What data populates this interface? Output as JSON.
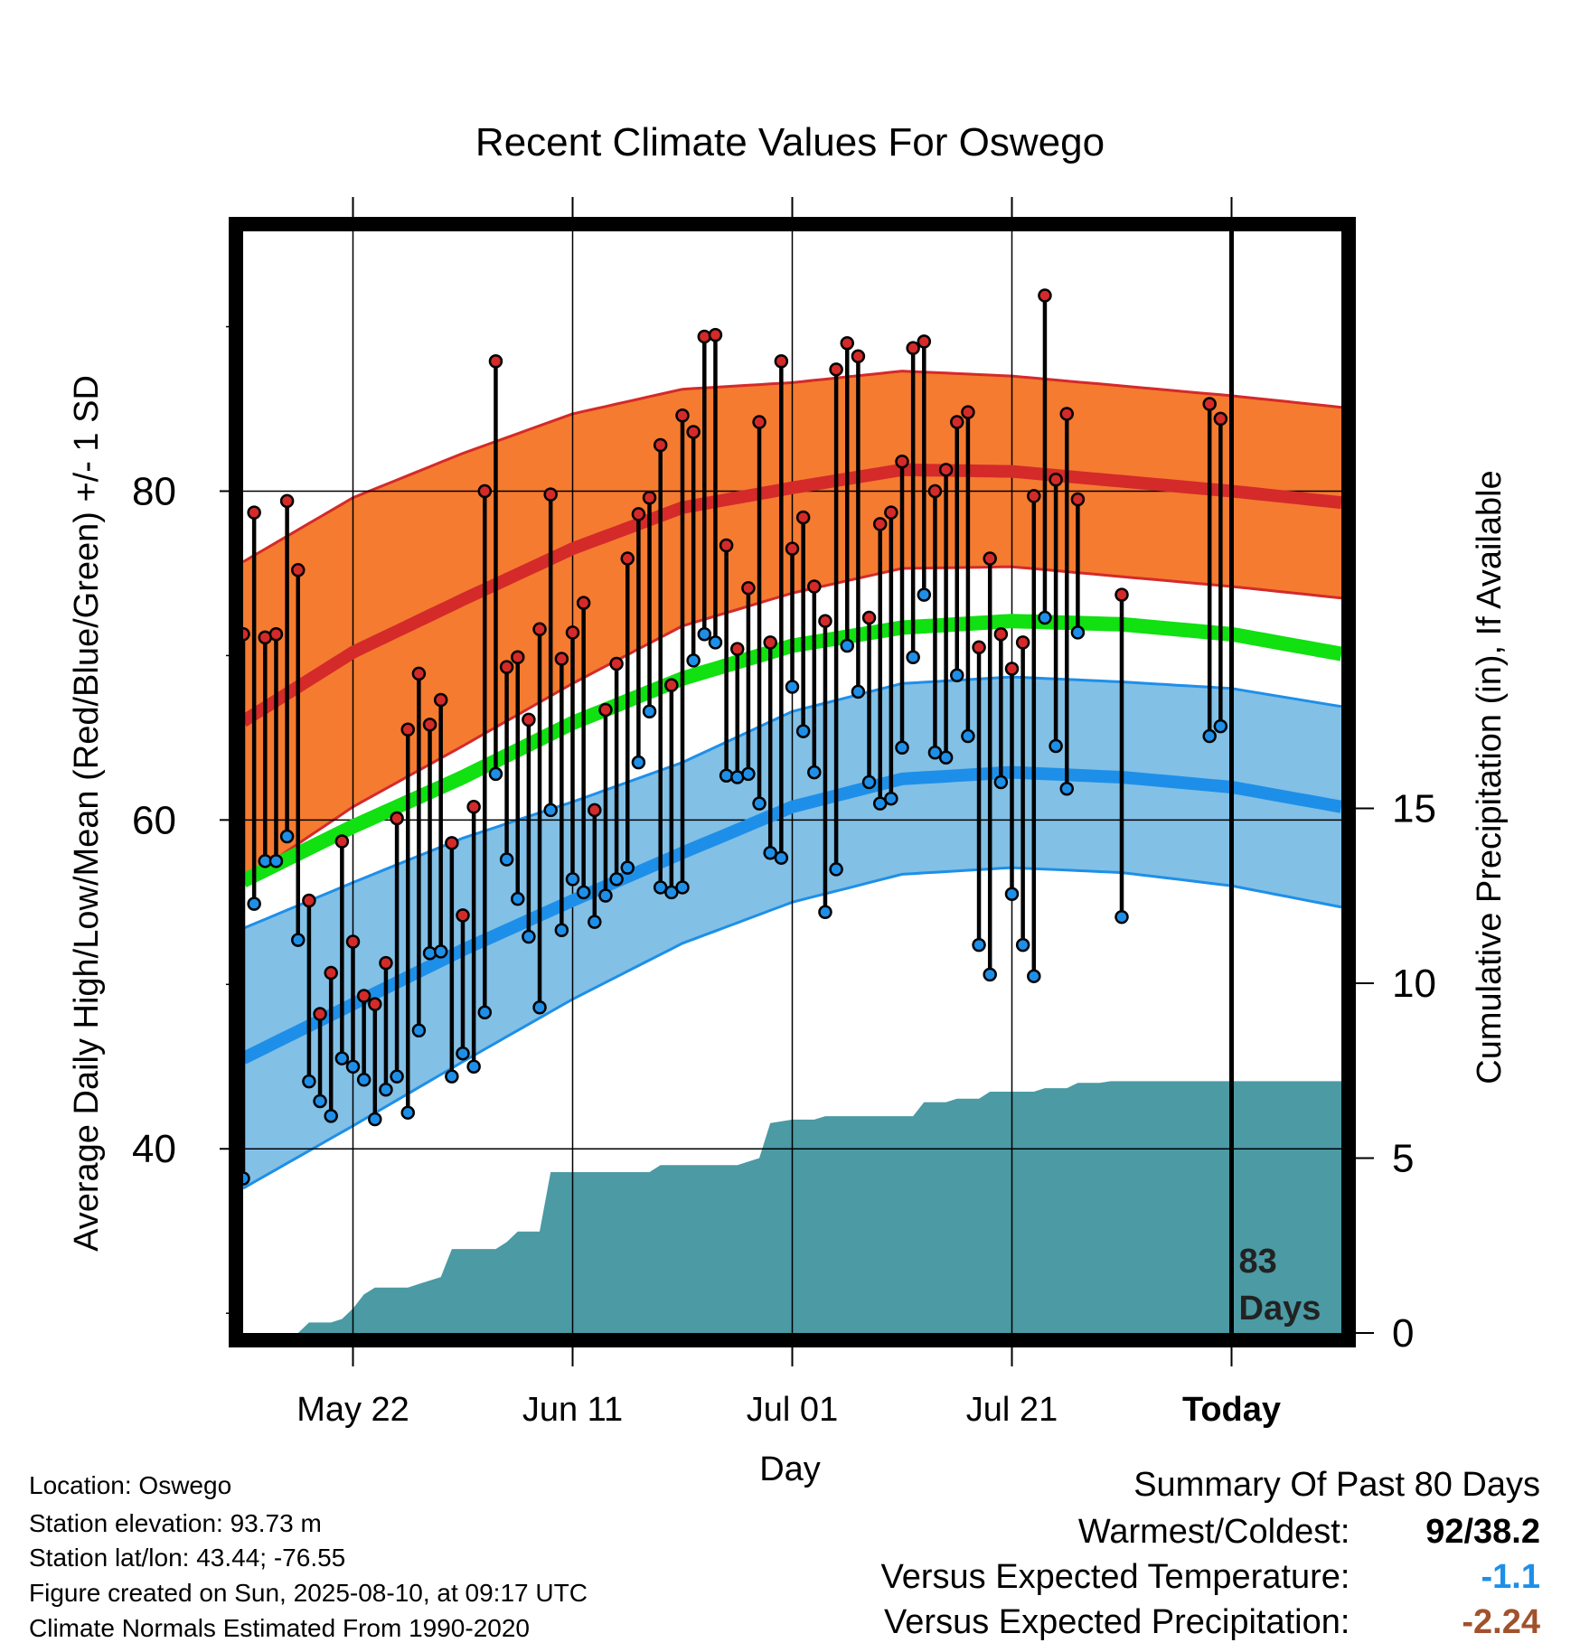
{
  "chart_data": {
    "type": "line",
    "title": "Recent Climate Values For Oswego",
    "xlabel": "Day",
    "ylabel": "Average Daily High/Low/Mean (Red/Blue/Green) +/- 1 SD",
    "ylabel_right": "Cumulative Precipitation (in), If Available",
    "x_tick_labels": [
      "May 22",
      "Jun 11",
      "Jul 01",
      "Jul 21",
      "Today"
    ],
    "x_tick_days": [
      10,
      30,
      50,
      70,
      90
    ],
    "x_range_days": [
      0,
      100
    ],
    "x_start_date": "2025-05-12",
    "y_ticks": [
      40,
      60,
      80
    ],
    "ylim": [
      28.8,
      95.8
    ],
    "y_right_ticks": [
      0,
      5,
      10,
      15
    ],
    "y_right_lim": [
      0,
      31.5
    ],
    "grid": true,
    "days_label": "83\nDays",
    "normal_high": [
      [
        0,
        66
      ],
      [
        10,
        70.2
      ],
      [
        20,
        73.4
      ],
      [
        30,
        76.5
      ],
      [
        40,
        79
      ],
      [
        50,
        80.2
      ],
      [
        60,
        81.3
      ],
      [
        70,
        81.2
      ],
      [
        80,
        80.6
      ],
      [
        90,
        80
      ],
      [
        100,
        79.3
      ]
    ],
    "normal_high_sd": [
      9.7,
      9.4,
      8.9,
      8.2,
      7.2,
      6.4,
      6.0,
      5.8,
      5.8,
      5.8,
      5.8
    ],
    "normal_low": [
      [
        0,
        45.5
      ],
      [
        10,
        48.8
      ],
      [
        20,
        52.1
      ],
      [
        30,
        55.1
      ],
      [
        40,
        58
      ],
      [
        50,
        60.8
      ],
      [
        60,
        62.5
      ],
      [
        70,
        62.9
      ],
      [
        80,
        62.6
      ],
      [
        90,
        62
      ],
      [
        100,
        60.8
      ]
    ],
    "normal_low_sd": [
      7.9,
      7.4,
      6.8,
      6.0,
      5.5,
      5.8,
      5.8,
      5.8,
      5.8,
      6.0,
      6.1
    ],
    "normal_mean": [
      [
        0,
        56.3
      ],
      [
        10,
        59.6
      ],
      [
        20,
        62.6
      ],
      [
        30,
        65.9
      ],
      [
        40,
        68.6
      ],
      [
        50,
        70.6
      ],
      [
        60,
        71.7
      ],
      [
        70,
        72.1
      ],
      [
        80,
        71.9
      ],
      [
        90,
        71.3
      ],
      [
        100,
        70.1
      ]
    ],
    "observed": [
      [
        0,
        71.3,
        38.2
      ],
      [
        1,
        78.7,
        54.9
      ],
      [
        2,
        71.1,
        57.5
      ],
      [
        3,
        71.3,
        57.5
      ],
      [
        4,
        79.4,
        59.0
      ],
      [
        5,
        75.2,
        52.7
      ],
      [
        6,
        55.1,
        44.1
      ],
      [
        7,
        48.2,
        42.9
      ],
      [
        8,
        50.7,
        42.0
      ],
      [
        9,
        58.7,
        45.5
      ],
      [
        10,
        52.6,
        45.0
      ],
      [
        11,
        49.3,
        44.2
      ],
      [
        12,
        48.8,
        41.8
      ],
      [
        13,
        51.3,
        43.6
      ],
      [
        14,
        60.1,
        44.4
      ],
      [
        15,
        65.5,
        42.2
      ],
      [
        16,
        68.9,
        47.2
      ],
      [
        17,
        65.8,
        51.9
      ],
      [
        18,
        67.3,
        52.0
      ],
      [
        19,
        58.6,
        44.4
      ],
      [
        20,
        54.2,
        45.8
      ],
      [
        21,
        60.8,
        45.0
      ],
      [
        22,
        80.0,
        48.3
      ],
      [
        23,
        87.9,
        62.8
      ],
      [
        24,
        69.3,
        57.6
      ],
      [
        25,
        69.9,
        55.2
      ],
      [
        26,
        66.1,
        52.9
      ],
      [
        27,
        71.6,
        48.6
      ],
      [
        28,
        79.8,
        60.6
      ],
      [
        29,
        69.8,
        53.3
      ],
      [
        30,
        71.4,
        56.4
      ],
      [
        31,
        73.2,
        55.6
      ],
      [
        32,
        60.6,
        53.8
      ],
      [
        33,
        66.7,
        55.4
      ],
      [
        34,
        69.5,
        56.4
      ],
      [
        35,
        75.9,
        57.1
      ],
      [
        36,
        78.6,
        63.5
      ],
      [
        37,
        79.6,
        66.6
      ],
      [
        38,
        82.8,
        55.9
      ],
      [
        39,
        68.2,
        55.6
      ],
      [
        40,
        84.6,
        55.9
      ],
      [
        41,
        83.6,
        69.7
      ],
      [
        42,
        89.4,
        71.3
      ],
      [
        43,
        89.5,
        70.8
      ],
      [
        44,
        76.7,
        62.7
      ],
      [
        45,
        70.4,
        62.6
      ],
      [
        46,
        74.1,
        62.8
      ],
      [
        47,
        84.2,
        61.0
      ],
      [
        48,
        70.8,
        58.0
      ],
      [
        49,
        87.9,
        57.7
      ],
      [
        50,
        76.5,
        68.1
      ],
      [
        51,
        78.4,
        65.4
      ],
      [
        52,
        74.2,
        62.9
      ],
      [
        53,
        72.1,
        54.4
      ],
      [
        54,
        87.4,
        57.0
      ],
      [
        55,
        89.0,
        70.6
      ],
      [
        56,
        88.2,
        67.8
      ],
      [
        57,
        72.3,
        62.3
      ],
      [
        58,
        78.0,
        61.0
      ],
      [
        59,
        78.7,
        61.3
      ],
      [
        60,
        81.8,
        64.4
      ],
      [
        61,
        88.7,
        69.9
      ],
      [
        62,
        89.1,
        73.7
      ],
      [
        63,
        80.0,
        64.1
      ],
      [
        64,
        81.3,
        63.8
      ],
      [
        65,
        84.2,
        68.8
      ],
      [
        66,
        84.8,
        65.1
      ],
      [
        67,
        70.5,
        52.4
      ],
      [
        68,
        75.9,
        50.6
      ],
      [
        69,
        71.3,
        62.3
      ],
      [
        70,
        69.2,
        55.5
      ],
      [
        71,
        70.8,
        52.4
      ],
      [
        72,
        79.7,
        50.5
      ],
      [
        73,
        91.9,
        72.3
      ],
      [
        74,
        80.7,
        64.5
      ],
      [
        75,
        84.7,
        61.9
      ],
      [
        76,
        79.5,
        71.4
      ],
      [
        80,
        73.7,
        54.1
      ],
      [
        88,
        85.3,
        65.1
      ],
      [
        89,
        84.4,
        65.7
      ]
    ],
    "cumulative_precip": [
      [
        0,
        0
      ],
      [
        5,
        0
      ],
      [
        6,
        0.3
      ],
      [
        8,
        0.3
      ],
      [
        9,
        0.4
      ],
      [
        10,
        0.7
      ],
      [
        11,
        1.1
      ],
      [
        12,
        1.3
      ],
      [
        15,
        1.3
      ],
      [
        16,
        1.4
      ],
      [
        18,
        1.6
      ],
      [
        19,
        2.4
      ],
      [
        23,
        2.4
      ],
      [
        24,
        2.6
      ],
      [
        25,
        2.9
      ],
      [
        27,
        2.9
      ],
      [
        28,
        4.6
      ],
      [
        37,
        4.6
      ],
      [
        38,
        4.8
      ],
      [
        45,
        4.8
      ],
      [
        46,
        4.9
      ],
      [
        47,
        5.0
      ],
      [
        48,
        6.0
      ],
      [
        50,
        6.1
      ],
      [
        52,
        6.1
      ],
      [
        53,
        6.2
      ],
      [
        61,
        6.2
      ],
      [
        62,
        6.6
      ],
      [
        64,
        6.6
      ],
      [
        65,
        6.7
      ],
      [
        67,
        6.7
      ],
      [
        68,
        6.9
      ],
      [
        72,
        6.9
      ],
      [
        73,
        7.0
      ],
      [
        75,
        7.0
      ],
      [
        76,
        7.15
      ],
      [
        78,
        7.15
      ],
      [
        79,
        7.2
      ],
      [
        100,
        7.2
      ]
    ],
    "colors": {
      "high_band": "#f47b30",
      "high_band_edge": "#d42a2a",
      "high_line": "#d42a2a",
      "low_band": "#82c0e6",
      "low_band_edge": "#1e8fe8",
      "low_line": "#1e8fe8",
      "mean_line": "#11e011",
      "precip_fill": "#4b9aa4",
      "high_dot": "#d42a2a",
      "low_dot": "#1e8fe8",
      "frame": "#000000"
    }
  },
  "info": {
    "location": "Location: Oswego",
    "elevation": "Station elevation: 93.73 m",
    "latlon": "Station lat/lon: 43.44; -76.55",
    "created": "Figure created on Sun, 2025-08-10, at 09:17 UTC",
    "normals": "Climate Normals Estimated From 1990-2020"
  },
  "summary": {
    "title": "Summary Of Past 80 Days",
    "warmest_label": "Warmest/Coldest:",
    "warmest_value": "92/38.2",
    "temp_label": "Versus Expected Temperature:",
    "temp_value": "-1.1",
    "temp_color": "#1e8fe8",
    "precip_label": "Versus Expected Precipitation:",
    "precip_value": "-2.24",
    "precip_color": "#a0522d"
  }
}
